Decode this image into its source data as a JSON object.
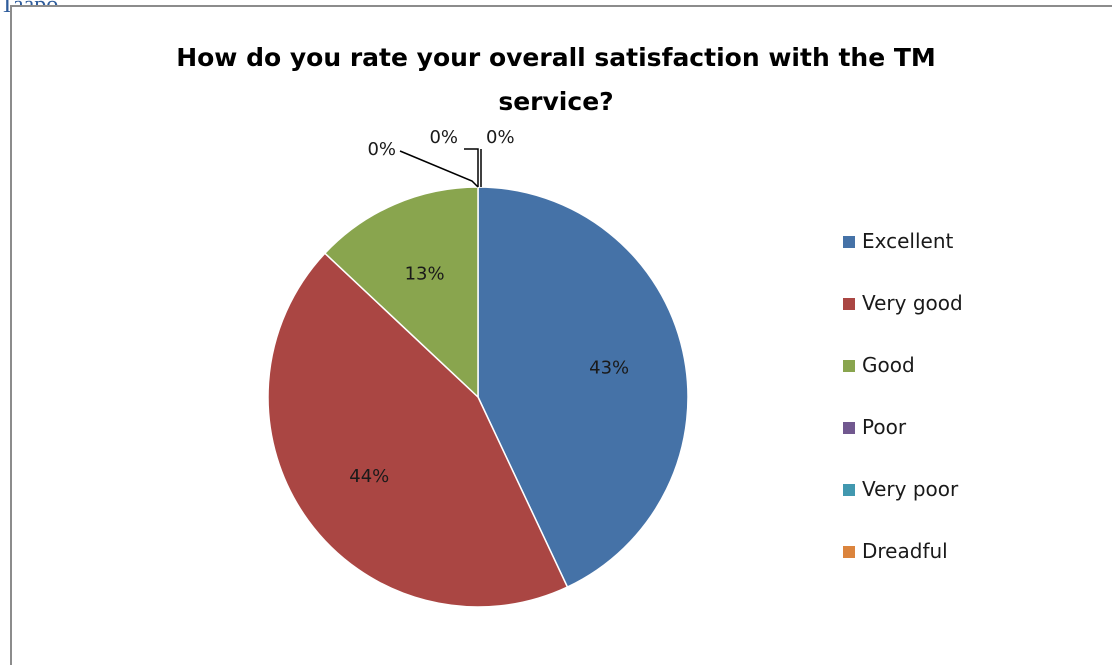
{
  "header": {
    "text": "Taapo."
  },
  "chart_data": {
    "type": "pie",
    "title_lines": [
      "How do you rate your overall satisfaction with the TM",
      "service?"
    ],
    "legend_position": "right",
    "slices": [
      {
        "name": "Excellent",
        "value": 43,
        "label": "43%",
        "color": "#4572a7"
      },
      {
        "name": "Very good",
        "value": 44,
        "label": "44%",
        "color": "#aa4643"
      },
      {
        "name": "Good",
        "value": 13,
        "label": "13%",
        "color": "#89a54e"
      },
      {
        "name": "Poor",
        "value": 0,
        "label": "0%",
        "color": "#71588f"
      },
      {
        "name": "Very poor",
        "value": 0,
        "label": "0%",
        "color": "#4198af"
      },
      {
        "name": "Dreadful",
        "value": 0,
        "label": "0%",
        "color": "#db843d"
      }
    ]
  }
}
